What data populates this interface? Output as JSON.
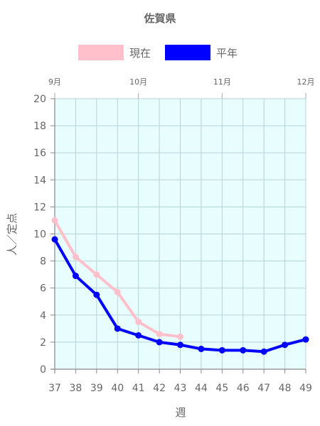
{
  "chart_data": {
    "type": "line",
    "title": "佐賀県",
    "xlabel": "週",
    "ylabel": "人／定点",
    "x": [
      37,
      38,
      39,
      40,
      41,
      42,
      43,
      44,
      45,
      46,
      47,
      48,
      49
    ],
    "ylim": [
      0,
      20
    ],
    "yticks": [
      0,
      2,
      4,
      6,
      8,
      10,
      12,
      14,
      16,
      18,
      20
    ],
    "grid": true,
    "legend_position": "top",
    "plot_background": "#e8fdfd",
    "grid_color": "#b5d3d8",
    "month_labels": [
      {
        "label": "9月",
        "week": 37
      },
      {
        "label": "10月",
        "week": 41
      },
      {
        "label": "11月",
        "week": 45
      },
      {
        "label": "12月",
        "week": 49
      }
    ],
    "series": [
      {
        "name": "現在",
        "color": "#ffc0cb",
        "x": [
          37,
          38,
          39,
          40,
          41,
          42,
          43
        ],
        "values": [
          11.0,
          8.3,
          7.0,
          5.7,
          3.5,
          2.6,
          2.4
        ]
      },
      {
        "name": "平年",
        "color": "#0000ff",
        "x": [
          37,
          38,
          39,
          40,
          41,
          42,
          43,
          44,
          45,
          46,
          47,
          48,
          49
        ],
        "values": [
          9.6,
          6.9,
          5.5,
          3.0,
          2.5,
          2.0,
          1.8,
          1.5,
          1.4,
          1.4,
          1.3,
          1.8,
          2.2
        ]
      }
    ]
  }
}
